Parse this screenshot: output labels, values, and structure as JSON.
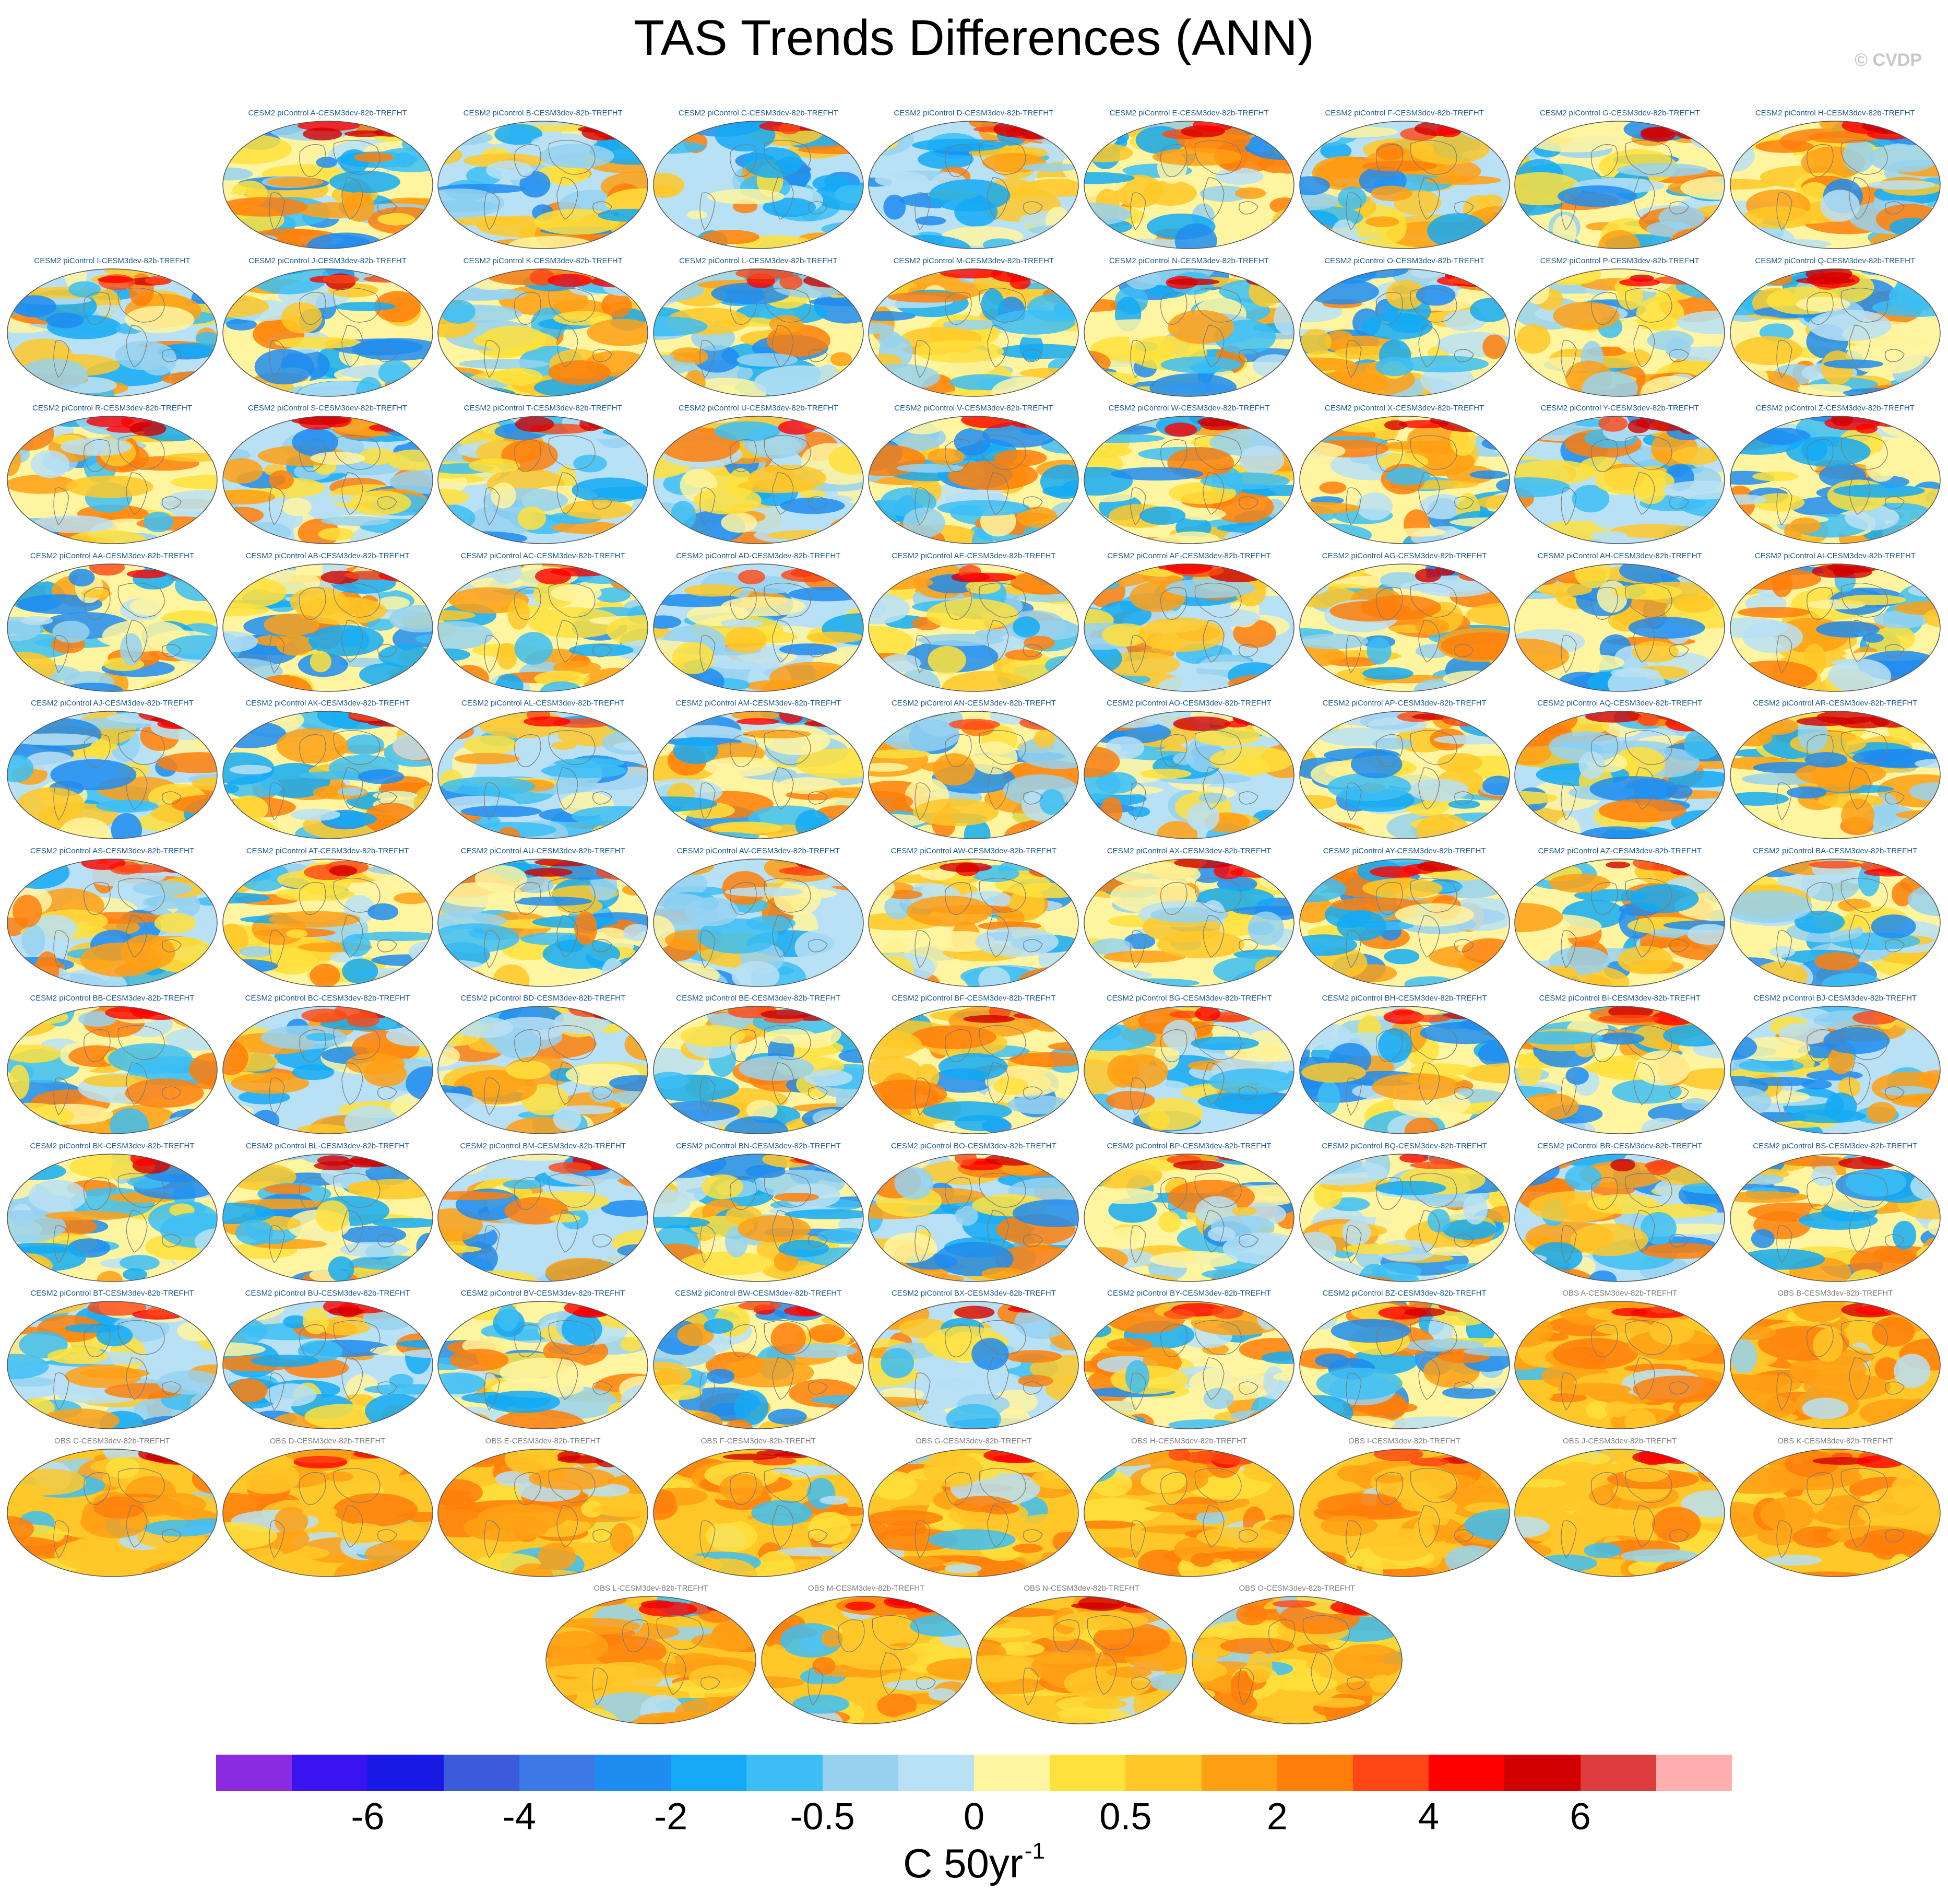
{
  "title": "TAS Trends Differences (ANN)",
  "copyright": "© CVDP",
  "chart_data": {
    "type": "heatmap",
    "title": "TAS Trends Differences (ANN)",
    "variable": "TREFHT",
    "season": "ANN",
    "projection": "global map",
    "panels": [
      {
        "label": "CESM2 piControl A-CESM3dev-82b-TREFHT",
        "kind": "model"
      },
      {
        "label": "CESM2 piControl B-CESM3dev-82b-TREFHT",
        "kind": "model"
      },
      {
        "label": "CESM2 piControl C-CESM3dev-82b-TREFHT",
        "kind": "model"
      },
      {
        "label": "CESM2 piControl D-CESM3dev-82b-TREFHT",
        "kind": "model"
      },
      {
        "label": "CESM2 piControl E-CESM3dev-82b-TREFHT",
        "kind": "model"
      },
      {
        "label": "CESM2 piControl F-CESM3dev-82b-TREFHT",
        "kind": "model"
      },
      {
        "label": "CESM2 piControl G-CESM3dev-82b-TREFHT",
        "kind": "model"
      },
      {
        "label": "CESM2 piControl H-CESM3dev-82b-TREFHT",
        "kind": "model"
      },
      {
        "label": "CESM2 piControl I-CESM3dev-82b-TREFHT",
        "kind": "model"
      },
      {
        "label": "CESM2 piControl J-CESM3dev-82b-TREFHT",
        "kind": "model"
      },
      {
        "label": "CESM2 piControl K-CESM3dev-82b-TREFHT",
        "kind": "model"
      },
      {
        "label": "CESM2 piControl L-CESM3dev-82b-TREFHT",
        "kind": "model"
      },
      {
        "label": "CESM2 piControl M-CESM3dev-82b-TREFHT",
        "kind": "model"
      },
      {
        "label": "CESM2 piControl N-CESM3dev-82b-TREFHT",
        "kind": "model"
      },
      {
        "label": "CESM2 piControl O-CESM3dev-82b-TREFHT",
        "kind": "model"
      },
      {
        "label": "CESM2 piControl P-CESM3dev-82b-TREFHT",
        "kind": "model"
      },
      {
        "label": "CESM2 piControl Q-CESM3dev-82b-TREFHT",
        "kind": "model"
      },
      {
        "label": "CESM2 piControl R-CESM3dev-82b-TREFHT",
        "kind": "model"
      },
      {
        "label": "CESM2 piControl S-CESM3dev-82b-TREFHT",
        "kind": "model"
      },
      {
        "label": "CESM2 piControl T-CESM3dev-82b-TREFHT",
        "kind": "model"
      },
      {
        "label": "CESM2 piControl U-CESM3dev-82b-TREFHT",
        "kind": "model"
      },
      {
        "label": "CESM2 piControl V-CESM3dev-82b-TREFHT",
        "kind": "model"
      },
      {
        "label": "CESM2 piControl W-CESM3dev-82b-TREFHT",
        "kind": "model"
      },
      {
        "label": "CESM2 piControl X-CESM3dev-82b-TREFHT",
        "kind": "model"
      },
      {
        "label": "CESM2 piControl Y-CESM3dev-82b-TREFHT",
        "kind": "model"
      },
      {
        "label": "CESM2 piControl Z-CESM3dev-82b-TREFHT",
        "kind": "model"
      },
      {
        "label": "CESM2 piControl AA-CESM3dev-82b-TREFHT",
        "kind": "model"
      },
      {
        "label": "CESM2 piControl AB-CESM3dev-82b-TREFHT",
        "kind": "model"
      },
      {
        "label": "CESM2 piControl AC-CESM3dev-82b-TREFHT",
        "kind": "model"
      },
      {
        "label": "CESM2 piControl AD-CESM3dev-82b-TREFHT",
        "kind": "model"
      },
      {
        "label": "CESM2 piControl AE-CESM3dev-82b-TREFHT",
        "kind": "model"
      },
      {
        "label": "CESM2 piControl AF-CESM3dev-82b-TREFHT",
        "kind": "model"
      },
      {
        "label": "CESM2 piControl AG-CESM3dev-82b-TREFHT",
        "kind": "model"
      },
      {
        "label": "CESM2 piControl AH-CESM3dev-82b-TREFHT",
        "kind": "model"
      },
      {
        "label": "CESM2 piControl AI-CESM3dev-82b-TREFHT",
        "kind": "model"
      },
      {
        "label": "CESM2 piControl AJ-CESM3dev-82b-TREFHT",
        "kind": "model"
      },
      {
        "label": "CESM2 piControl AK-CESM3dev-82b-TREFHT",
        "kind": "model"
      },
      {
        "label": "CESM2 piControl AL-CESM3dev-82b-TREFHT",
        "kind": "model"
      },
      {
        "label": "CESM2 piControl AM-CESM3dev-82b-TREFHT",
        "kind": "model"
      },
      {
        "label": "CESM2 piControl AN-CESM3dev-82b-TREFHT",
        "kind": "model"
      },
      {
        "label": "CESM2 piControl AO-CESM3dev-82b-TREFHT",
        "kind": "model"
      },
      {
        "label": "CESM2 piControl AP-CESM3dev-82b-TREFHT",
        "kind": "model"
      },
      {
        "label": "CESM2 piControl AQ-CESM3dev-82b-TREFHT",
        "kind": "model"
      },
      {
        "label": "CESM2 piControl AR-CESM3dev-82b-TREFHT",
        "kind": "model"
      },
      {
        "label": "CESM2 piControl AS-CESM3dev-82b-TREFHT",
        "kind": "model"
      },
      {
        "label": "CESM2 piControl AT-CESM3dev-82b-TREFHT",
        "kind": "model"
      },
      {
        "label": "CESM2 piControl AU-CESM3dev-82b-TREFHT",
        "kind": "model"
      },
      {
        "label": "CESM2 piControl AV-CESM3dev-82b-TREFHT",
        "kind": "model"
      },
      {
        "label": "CESM2 piControl AW-CESM3dev-82b-TREFHT",
        "kind": "model"
      },
      {
        "label": "CESM2 piControl AX-CESM3dev-82b-TREFHT",
        "kind": "model"
      },
      {
        "label": "CESM2 piControl AY-CESM3dev-82b-TREFHT",
        "kind": "model"
      },
      {
        "label": "CESM2 piControl AZ-CESM3dev-82b-TREFHT",
        "kind": "model"
      },
      {
        "label": "CESM2 piControl BA-CESM3dev-82b-TREFHT",
        "kind": "model"
      },
      {
        "label": "CESM2 piControl BB-CESM3dev-82b-TREFHT",
        "kind": "model"
      },
      {
        "label": "CESM2 piControl BC-CESM3dev-82b-TREFHT",
        "kind": "model"
      },
      {
        "label": "CESM2 piControl BD-CESM3dev-82b-TREFHT",
        "kind": "model"
      },
      {
        "label": "CESM2 piControl BE-CESM3dev-82b-TREFHT",
        "kind": "model"
      },
      {
        "label": "CESM2 piControl BF-CESM3dev-82b-TREFHT",
        "kind": "model"
      },
      {
        "label": "CESM2 piControl BG-CESM3dev-82b-TREFHT",
        "kind": "model"
      },
      {
        "label": "CESM2 piControl BH-CESM3dev-82b-TREFHT",
        "kind": "model"
      },
      {
        "label": "CESM2 piControl BI-CESM3dev-82b-TREFHT",
        "kind": "model"
      },
      {
        "label": "CESM2 piControl BJ-CESM3dev-82b-TREFHT",
        "kind": "model"
      },
      {
        "label": "CESM2 piControl BK-CESM3dev-82b-TREFHT",
        "kind": "model"
      },
      {
        "label": "CESM2 piControl BL-CESM3dev-82b-TREFHT",
        "kind": "model"
      },
      {
        "label": "CESM2 piControl BM-CESM3dev-82b-TREFHT",
        "kind": "model"
      },
      {
        "label": "CESM2 piControl BN-CESM3dev-82b-TREFHT",
        "kind": "model"
      },
      {
        "label": "CESM2 piControl BO-CESM3dev-82b-TREFHT",
        "kind": "model"
      },
      {
        "label": "CESM2 piControl BP-CESM3dev-82b-TREFHT",
        "kind": "model"
      },
      {
        "label": "CESM2 piControl BQ-CESM3dev-82b-TREFHT",
        "kind": "model"
      },
      {
        "label": "CESM2 piControl BR-CESM3dev-82b-TREFHT",
        "kind": "model"
      },
      {
        "label": "CESM2 piControl BS-CESM3dev-82b-TREFHT",
        "kind": "model"
      },
      {
        "label": "CESM2 piControl BT-CESM3dev-82b-TREFHT",
        "kind": "model"
      },
      {
        "label": "CESM2 piControl BU-CESM3dev-82b-TREFHT",
        "kind": "model"
      },
      {
        "label": "CESM2 piControl BV-CESM3dev-82b-TREFHT",
        "kind": "model"
      },
      {
        "label": "CESM2 piControl BW-CESM3dev-82b-TREFHT",
        "kind": "model"
      },
      {
        "label": "CESM2 piControl BX-CESM3dev-82b-TREFHT",
        "kind": "model"
      },
      {
        "label": "CESM2 piControl BY-CESM3dev-82b-TREFHT",
        "kind": "model"
      },
      {
        "label": "CESM2 piControl BZ-CESM3dev-82b-TREFHT",
        "kind": "model"
      },
      {
        "label": "OBS A-CESM3dev-82b-TREFHT",
        "kind": "obs"
      },
      {
        "label": "OBS B-CESM3dev-82b-TREFHT",
        "kind": "obs"
      },
      {
        "label": "OBS C-CESM3dev-82b-TREFHT",
        "kind": "obs"
      },
      {
        "label": "OBS D-CESM3dev-82b-TREFHT",
        "kind": "obs"
      },
      {
        "label": "OBS E-CESM3dev-82b-TREFHT",
        "kind": "obs"
      },
      {
        "label": "OBS F-CESM3dev-82b-TREFHT",
        "kind": "obs"
      },
      {
        "label": "OBS G-CESM3dev-82b-TREFHT",
        "kind": "obs"
      },
      {
        "label": "OBS H-CESM3dev-82b-TREFHT",
        "kind": "obs"
      },
      {
        "label": "OBS I-CESM3dev-82b-TREFHT",
        "kind": "obs"
      },
      {
        "label": "OBS J-CESM3dev-82b-TREFHT",
        "kind": "obs"
      },
      {
        "label": "OBS K-CESM3dev-82b-TREFHT",
        "kind": "obs"
      },
      {
        "label": "OBS L-CESM3dev-82b-TREFHT",
        "kind": "obs"
      },
      {
        "label": "OBS M-CESM3dev-82b-TREFHT",
        "kind": "obs"
      },
      {
        "label": "OBS N-CESM3dev-82b-TREFHT",
        "kind": "obs"
      },
      {
        "label": "OBS O-CESM3dev-82b-TREFHT",
        "kind": "obs"
      }
    ],
    "colorbar": {
      "colors": [
        "#8a2be2",
        "#3a14f0",
        "#1a1ae6",
        "#3c5adc",
        "#3c78e6",
        "#1e8cf0",
        "#14aaf5",
        "#3cbef5",
        "#96d2f0",
        "#b9e1f5",
        "#fff5a0",
        "#ffe13c",
        "#ffc828",
        "#ffa014",
        "#ff7f0a",
        "#ff4614",
        "#ff0000",
        "#d20000",
        "#dc3c3c",
        "#ffafaf"
      ],
      "tick_labels": [
        "-6",
        "-4",
        "-2",
        "-0.5",
        "0",
        "0.5",
        "2",
        "4",
        "6"
      ],
      "tick_boundary_index": [
        2,
        4,
        6,
        8,
        10,
        12,
        14,
        16,
        18
      ],
      "units_base": "C 50yr",
      "units_exponent": "-1"
    }
  }
}
